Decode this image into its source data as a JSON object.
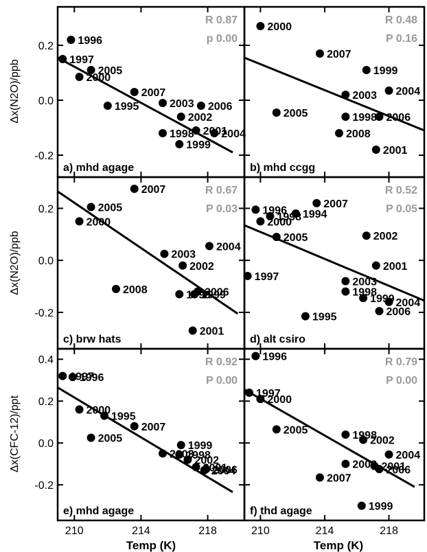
{
  "figure": {
    "xlabel": "Temp (K)",
    "xticks": [
      210,
      214,
      218
    ],
    "xlim": [
      209,
      220.2
    ],
    "row_ylabels": [
      "Δx(N2O)/ppb",
      "Δx(N2O)/ppb",
      "Δx(CFC-12)/ppt"
    ]
  },
  "chart_data": [
    {
      "type": "scatter",
      "panel_label": "a) mhd agage",
      "stats": [
        "R 0.87",
        "p 0.00"
      ],
      "ylim": [
        -0.28,
        0.34
      ],
      "yticks": [
        -0.2,
        0.0,
        0.2
      ],
      "ytick_labels": [
        "-0.2",
        "0.0",
        "0.2"
      ],
      "show_y_ticklabels": true,
      "fit_line": [
        [
          209,
          0.155
        ],
        [
          219.5,
          -0.19
        ]
      ],
      "points": [
        {
          "x": 209.8,
          "y": 0.22,
          "label": "1996"
        },
        {
          "x": 209.3,
          "y": 0.15,
          "label": "1997"
        },
        {
          "x": 211.0,
          "y": 0.11,
          "label": "2005"
        },
        {
          "x": 210.3,
          "y": 0.085,
          "label": "2000"
        },
        {
          "x": 213.6,
          "y": 0.03,
          "label": "2007"
        },
        {
          "x": 212.0,
          "y": -0.02,
          "label": "1995"
        },
        {
          "x": 215.3,
          "y": -0.01,
          "label": "2003"
        },
        {
          "x": 217.6,
          "y": -0.02,
          "label": "2006"
        },
        {
          "x": 216.4,
          "y": -0.06,
          "label": "2002"
        },
        {
          "x": 217.3,
          "y": -0.11,
          "label": "2001"
        },
        {
          "x": 215.3,
          "y": -0.12,
          "label": "1998"
        },
        {
          "x": 218.4,
          "y": -0.12,
          "label": "2004"
        },
        {
          "x": 216.3,
          "y": -0.16,
          "label": "1999"
        }
      ]
    },
    {
      "type": "scatter",
      "panel_label": "b) mhd ccgg",
      "stats": [
        "R 0.48",
        "P 0.16"
      ],
      "ylim": [
        -0.28,
        0.34
      ],
      "yticks": [
        -0.2,
        0.0,
        0.2
      ],
      "ytick_labels": [
        "-0.2",
        "0.0",
        "0.2"
      ],
      "show_y_ticklabels": false,
      "fit_line": [
        [
          209,
          0.155
        ],
        [
          220.2,
          -0.11
        ]
      ],
      "points": [
        {
          "x": 210.0,
          "y": 0.27,
          "label": "2000"
        },
        {
          "x": 213.7,
          "y": 0.17,
          "label": "2007"
        },
        {
          "x": 216.6,
          "y": 0.11,
          "label": "1999"
        },
        {
          "x": 215.3,
          "y": 0.02,
          "label": "2003"
        },
        {
          "x": 218.0,
          "y": 0.035,
          "label": "2004"
        },
        {
          "x": 211.0,
          "y": -0.045,
          "label": "2005"
        },
        {
          "x": 215.3,
          "y": -0.06,
          "label": "1998"
        },
        {
          "x": 217.4,
          "y": -0.06,
          "label": "2006"
        },
        {
          "x": 214.9,
          "y": -0.12,
          "label": "2008"
        },
        {
          "x": 217.2,
          "y": -0.18,
          "label": "2001"
        }
      ]
    },
    {
      "type": "scatter",
      "panel_label": "c) brw hats",
      "stats": [
        "R 0.67",
        "P 0.03"
      ],
      "ylim": [
        -0.34,
        0.32
      ],
      "yticks": [
        -0.2,
        0.0,
        0.2
      ],
      "ytick_labels": [
        "-0.2",
        "0.0",
        "0.2"
      ],
      "show_y_ticklabels": true,
      "fit_line": [
        [
          209,
          0.265
        ],
        [
          219.8,
          -0.205
        ]
      ],
      "points": [
        {
          "x": 213.6,
          "y": 0.275,
          "label": "2007"
        },
        {
          "x": 211.0,
          "y": 0.205,
          "label": "2005"
        },
        {
          "x": 210.3,
          "y": 0.15,
          "label": "2000"
        },
        {
          "x": 215.4,
          "y": 0.025,
          "label": "2003"
        },
        {
          "x": 218.1,
          "y": 0.055,
          "label": "2004"
        },
        {
          "x": 216.5,
          "y": -0.02,
          "label": "2002"
        },
        {
          "x": 212.5,
          "y": -0.11,
          "label": "2008"
        },
        {
          "x": 216.3,
          "y": -0.13,
          "label": "1998"
        },
        {
          "x": 217.4,
          "y": -0.12,
          "label": "2006"
        },
        {
          "x": 217.2,
          "y": -0.13,
          "label": "1999"
        },
        {
          "x": 217.1,
          "y": -0.27,
          "label": "2001"
        }
      ]
    },
    {
      "type": "scatter",
      "panel_label": "d) alt csiro",
      "stats": [
        "R 0.52",
        "P 0.05"
      ],
      "ylim": [
        -0.34,
        0.32
      ],
      "yticks": [
        -0.2,
        0.0,
        0.2
      ],
      "ytick_labels": [
        "-0.2",
        "0.0",
        "0.2"
      ],
      "show_y_ticklabels": false,
      "fit_line": [
        [
          209,
          0.135
        ],
        [
          220.2,
          -0.155
        ]
      ],
      "points": [
        {
          "x": 209.7,
          "y": 0.195,
          "label": "1996"
        },
        {
          "x": 210.6,
          "y": 0.17,
          "label": "1998"
        },
        {
          "x": 213.5,
          "y": 0.22,
          "label": "2007"
        },
        {
          "x": 212.2,
          "y": 0.18,
          "label": "1994"
        },
        {
          "x": 210.0,
          "y": 0.15,
          "label": "2000"
        },
        {
          "x": 211.0,
          "y": 0.09,
          "label": "2005"
        },
        {
          "x": 216.6,
          "y": 0.095,
          "label": "2002"
        },
        {
          "x": 217.2,
          "y": -0.02,
          "label": "2001"
        },
        {
          "x": 209.2,
          "y": -0.06,
          "label": "1997"
        },
        {
          "x": 215.3,
          "y": -0.08,
          "label": "2003"
        },
        {
          "x": 215.3,
          "y": -0.12,
          "label": "1998"
        },
        {
          "x": 216.4,
          "y": -0.145,
          "label": "1999"
        },
        {
          "x": 218.0,
          "y": -0.16,
          "label": "2004"
        },
        {
          "x": 217.4,
          "y": -0.195,
          "label": "2006"
        },
        {
          "x": 212.8,
          "y": -0.215,
          "label": "1995"
        }
      ]
    },
    {
      "type": "scatter",
      "panel_label": "e) mhd agage",
      "stats": [
        "R 0.92",
        "P 0.00"
      ],
      "ylim": [
        -0.37,
        0.45
      ],
      "yticks": [
        -0.2,
        0.0,
        0.2,
        0.4
      ],
      "ytick_labels": [
        "-0.2",
        "0.0",
        "0.2",
        "0.4"
      ],
      "show_y_ticklabels": true,
      "fit_line": [
        [
          209,
          0.265
        ],
        [
          219.5,
          -0.235
        ]
      ],
      "points": [
        {
          "x": 209.3,
          "y": 0.32,
          "label": "1997"
        },
        {
          "x": 209.9,
          "y": 0.315,
          "label": "1996"
        },
        {
          "x": 210.3,
          "y": 0.16,
          "label": "2000"
        },
        {
          "x": 211.8,
          "y": 0.13,
          "label": "1995"
        },
        {
          "x": 213.6,
          "y": 0.08,
          "label": "2007"
        },
        {
          "x": 211.0,
          "y": 0.025,
          "label": "2005"
        },
        {
          "x": 216.4,
          "y": -0.01,
          "label": "1999"
        },
        {
          "x": 215.3,
          "y": -0.05,
          "label": "2003"
        },
        {
          "x": 216.3,
          "y": -0.055,
          "label": "1998"
        },
        {
          "x": 216.8,
          "y": -0.08,
          "label": "2002"
        },
        {
          "x": 217.3,
          "y": -0.115,
          "label": "2001"
        },
        {
          "x": 217.9,
          "y": -0.125,
          "label": "2006"
        },
        {
          "x": 217.8,
          "y": -0.13,
          "label": "2004"
        }
      ]
    },
    {
      "type": "scatter",
      "panel_label": "f) thd agage",
      "stats": [
        "R 0.79",
        "P 0.00"
      ],
      "ylim": [
        -0.37,
        0.45
      ],
      "yticks": [
        -0.2,
        0.0,
        0.2,
        0.4
      ],
      "ytick_labels": [
        "-0.2",
        "0.0",
        "0.2",
        "0.4"
      ],
      "show_y_ticklabels": false,
      "fit_line": [
        [
          209,
          0.255
        ],
        [
          219.6,
          -0.21
        ]
      ],
      "points": [
        {
          "x": 209.7,
          "y": 0.415,
          "label": "1996"
        },
        {
          "x": 209.3,
          "y": 0.24,
          "label": "1997"
        },
        {
          "x": 210.0,
          "y": 0.21,
          "label": "2000"
        },
        {
          "x": 211.0,
          "y": 0.065,
          "label": "2005"
        },
        {
          "x": 215.3,
          "y": 0.04,
          "label": "1998"
        },
        {
          "x": 216.4,
          "y": 0.015,
          "label": "2002"
        },
        {
          "x": 218.0,
          "y": -0.055,
          "label": "2004"
        },
        {
          "x": 215.3,
          "y": -0.1,
          "label": "2003"
        },
        {
          "x": 217.1,
          "y": -0.11,
          "label": "2001"
        },
        {
          "x": 217.4,
          "y": -0.125,
          "label": "2006"
        },
        {
          "x": 213.7,
          "y": -0.165,
          "label": "2007"
        },
        {
          "x": 216.3,
          "y": -0.3,
          "label": "1999"
        }
      ]
    }
  ]
}
